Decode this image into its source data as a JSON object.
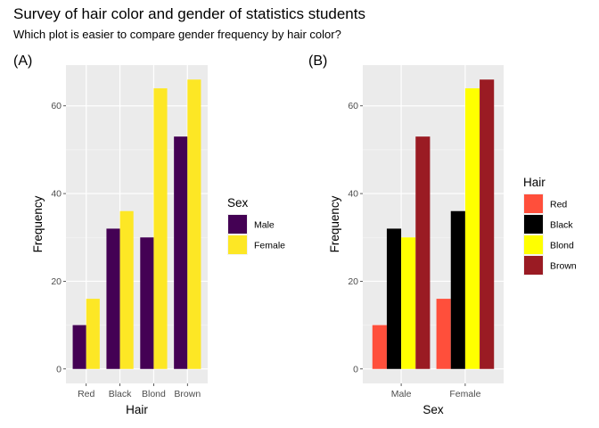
{
  "title": "Survey of hair color and gender of statistics students",
  "subtitle": "Which plot is easier to compare gender frequency by hair color?",
  "chart_data": [
    {
      "tag": "(A)",
      "type": "bar",
      "position": "dodge",
      "categories": [
        "Red",
        "Black",
        "Blond",
        "Brown"
      ],
      "series": [
        {
          "name": "Male",
          "color": "#440154",
          "values": [
            10,
            32,
            30,
            53
          ]
        },
        {
          "name": "Female",
          "color": "#FDE725",
          "values": [
            16,
            36,
            64,
            66
          ]
        }
      ],
      "xlabel": "Hair",
      "ylabel": "Frequency",
      "yticks": [
        0,
        20,
        40,
        60
      ],
      "ylim": [
        0,
        66
      ],
      "grid": true,
      "legend_title": "Sex",
      "legend_position": "right"
    },
    {
      "tag": "(B)",
      "type": "bar",
      "position": "dodge",
      "categories": [
        "Male",
        "Female"
      ],
      "series": [
        {
          "name": "Red",
          "color": "#FF4F3B",
          "values": [
            10,
            16
          ]
        },
        {
          "name": "Black",
          "color": "#000000",
          "values": [
            32,
            36
          ]
        },
        {
          "name": "Blond",
          "color": "#FFFF00",
          "values": [
            30,
            64
          ]
        },
        {
          "name": "Brown",
          "color": "#9A1B23",
          "values": [
            53,
            66
          ]
        }
      ],
      "xlabel": "Sex",
      "ylabel": "Frequency",
      "yticks": [
        0,
        20,
        40,
        60
      ],
      "ylim": [
        0,
        66
      ],
      "grid": true,
      "legend_title": "Hair",
      "legend_position": "right"
    }
  ]
}
